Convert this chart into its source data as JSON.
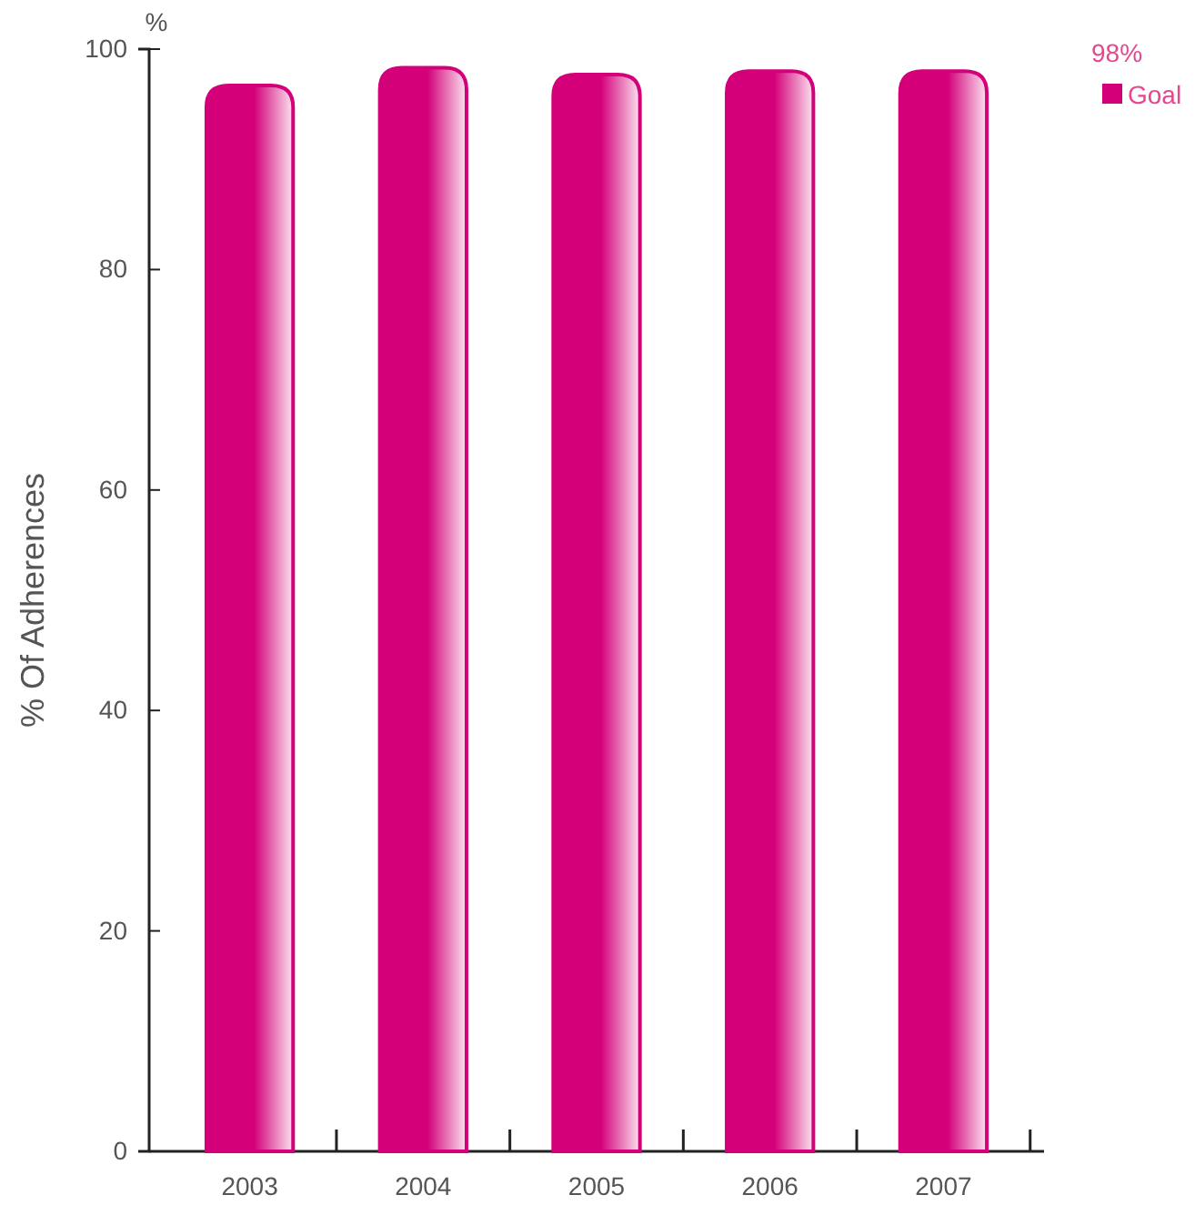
{
  "chart_data": {
    "type": "bar",
    "ylabel": "% Of Adherences",
    "annotations": [
      "%"
    ],
    "legend_title": "98%",
    "legend": "top right",
    "categories": [
      "2003",
      "2004",
      "2005",
      "2006",
      "2007"
    ],
    "series": [
      {
        "name": "Goal",
        "color": "#d4007a",
        "values": [
          96.7,
          98.3,
          97.7,
          98.0,
          98.0
        ]
      }
    ],
    "ylim": [
      0,
      100
    ],
    "yticks": [
      0,
      20,
      40,
      60,
      80,
      100
    ],
    "grid": false
  }
}
